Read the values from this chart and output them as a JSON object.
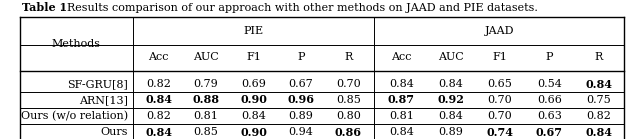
{
  "title_bold": "Table 1",
  "title_rest": ". Results comparison of our approach with other methods on JAAD and PIE datasets.",
  "col_groups": [
    {
      "label": "PIE",
      "cols": [
        "Acc",
        "AUC",
        "F1",
        "P",
        "R"
      ]
    },
    {
      "label": "JAAD",
      "cols": [
        "Acc",
        "AUC",
        "F1",
        "P",
        "R"
      ]
    }
  ],
  "methods": [
    "SF-GRU[8]",
    "ARN[13]",
    "Ours (w/o relation)",
    "Ours"
  ],
  "pie_data": [
    [
      "0.82",
      "0.79",
      "0.69",
      "0.67",
      "0.70"
    ],
    [
      "0.84",
      "0.88",
      "0.90",
      "0.96",
      "0.85"
    ],
    [
      "0.82",
      "0.81",
      "0.84",
      "0.89",
      "0.80"
    ],
    [
      "0.84",
      "0.85",
      "0.90",
      "0.94",
      "0.86"
    ]
  ],
  "jaad_data": [
    [
      "0.84",
      "0.84",
      "0.65",
      "0.54",
      "0.84"
    ],
    [
      "0.87",
      "0.92",
      "0.70",
      "0.66",
      "0.75"
    ],
    [
      "0.81",
      "0.84",
      "0.70",
      "0.63",
      "0.82"
    ],
    [
      "0.84",
      "0.89",
      "0.74",
      "0.67",
      "0.84"
    ]
  ],
  "pie_bold": [
    [
      false,
      false,
      false,
      false,
      false
    ],
    [
      true,
      true,
      true,
      true,
      false
    ],
    [
      false,
      false,
      false,
      false,
      false
    ],
    [
      true,
      false,
      true,
      false,
      true
    ]
  ],
  "jaad_bold": [
    [
      false,
      false,
      false,
      false,
      true
    ],
    [
      true,
      true,
      false,
      false,
      false
    ],
    [
      false,
      false,
      false,
      false,
      false
    ],
    [
      false,
      false,
      true,
      true,
      true
    ]
  ],
  "bg_color": "#ffffff",
  "font_size": 8.0
}
